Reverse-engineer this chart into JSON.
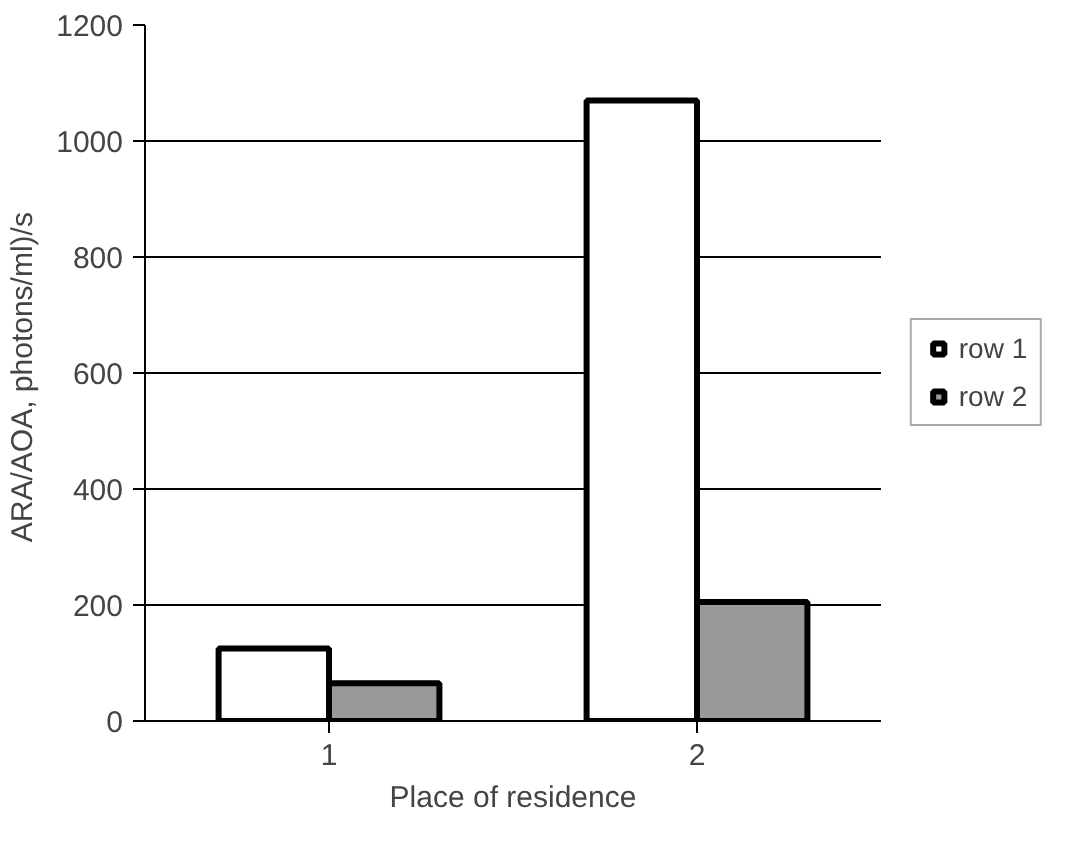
{
  "chart_data": {
    "type": "bar",
    "xlabel": "Place of residence",
    "ylabel": "ARA/AOA,  photons/ml)/s",
    "categories": [
      "1",
      "2"
    ],
    "series": [
      {
        "name": "row 1",
        "color": "#ffffff",
        "values": [
          125,
          1070
        ]
      },
      {
        "name": "row 2",
        "color": "#999999",
        "values": [
          65,
          205
        ]
      }
    ],
    "ylim": [
      0,
      1200
    ],
    "yticks": [
      0,
      200,
      400,
      600,
      800,
      1000,
      1200
    ],
    "grid": "y",
    "legend": "right"
  }
}
